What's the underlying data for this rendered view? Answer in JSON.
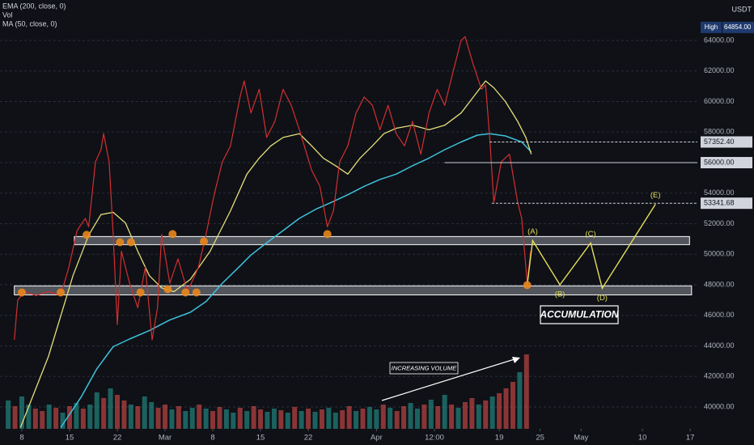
{
  "chart_data": {
    "type": "line",
    "currency": "USDT",
    "xlim": [
      -3.2,
      99.05
    ],
    "ylim": [
      38570,
      66650
    ],
    "xticks": [
      {
        "value": 0,
        "label": "8"
      },
      {
        "value": 7,
        "label": "15"
      },
      {
        "value": 14,
        "label": "22"
      },
      {
        "value": 21,
        "label": "Mar"
      },
      {
        "value": 28,
        "label": "8"
      },
      {
        "value": 35,
        "label": "15"
      },
      {
        "value": 42,
        "label": "22"
      },
      {
        "value": 52,
        "label": "Apr"
      },
      {
        "value": 60.5,
        "label": "12:00"
      },
      {
        "value": 70,
        "label": "19"
      },
      {
        "value": 76,
        "label": "25"
      },
      {
        "value": 82,
        "label": "May"
      },
      {
        "value": 91,
        "label": "10"
      },
      {
        "value": 98,
        "label": "17"
      }
    ],
    "yticks": [
      {
        "value": 40000,
        "label": "40000.00"
      },
      {
        "value": 42000,
        "label": "42000.00"
      },
      {
        "value": 44000,
        "label": "44000.00"
      },
      {
        "value": 46000,
        "label": "46000.00"
      },
      {
        "value": 48000,
        "label": "48000.00"
      },
      {
        "value": 50000,
        "label": "50000.00"
      },
      {
        "value": 52000,
        "label": "52000.00"
      },
      {
        "value": 54000,
        "label": "54000.00"
      },
      {
        "value": 56000,
        "label": "56000.00"
      },
      {
        "value": 58000,
        "label": "58000.00"
      },
      {
        "value": 60000,
        "label": "60000.00"
      },
      {
        "value": 62000,
        "label": "62000.00"
      },
      {
        "value": 64000,
        "label": "64000.00"
      }
    ],
    "grid": true,
    "price": {
      "color": "#d32f2f",
      "x": [
        -1.1,
        -0.6,
        0.4,
        2.1,
        3.9,
        5.7,
        6.9,
        8.1,
        9.3,
        9.8,
        10.8,
        11.6,
        12.0,
        12.8,
        13.4,
        14.0,
        14.6,
        15.8,
        17.0,
        18.1,
        19.1,
        19.9,
        20.5,
        21.7,
        22.9,
        24.3,
        25.9,
        27.0,
        28.2,
        29.4,
        30.6,
        32.0,
        32.6,
        33.6,
        34.8,
        35.9,
        37.1,
        38.3,
        39.5,
        40.7,
        42.5,
        43.7,
        44.8,
        45.7,
        46.6,
        47.8,
        49.0,
        50.2,
        51.4,
        52.5,
        53.7,
        54.9,
        56.1,
        57.3,
        58.5,
        59.7,
        60.9,
        62.0,
        63.2,
        64.4,
        65.0,
        66.2,
        67.4,
        68.0,
        68.6,
        69.2,
        70.3,
        71.5,
        72.7,
        73.3,
        74.1,
        74.6
      ],
      "values": [
        44400,
        47000,
        47550,
        47300,
        47550,
        47300,
        49150,
        51550,
        52350,
        51800,
        56050,
        56850,
        57900,
        56050,
        51300,
        45400,
        50200,
        48100,
        46500,
        49150,
        44400,
        46500,
        51300,
        48100,
        49700,
        47550,
        49150,
        51300,
        53900,
        56050,
        57100,
        60300,
        61350,
        59250,
        60800,
        57650,
        58700,
        60800,
        59750,
        58150,
        55500,
        54450,
        51800,
        52850,
        56050,
        57100,
        59250,
        60300,
        59750,
        58150,
        59750,
        57900,
        57100,
        58700,
        56550,
        59250,
        60800,
        59750,
        61900,
        64000,
        64250,
        62400,
        60800,
        61100,
        57650,
        53400,
        56050,
        56550,
        53400,
        52350,
        48100,
        50200
      ]
    },
    "ma": {
      "name": "MA (50, close, 0)",
      "color": "#e6df7a",
      "x": [
        -0.2,
        3.9,
        7.5,
        9.8,
        11.6,
        13.4,
        15.2,
        17.0,
        18.7,
        20.5,
        22.3,
        24.7,
        27.6,
        30.6,
        33.0,
        34.8,
        36.5,
        38.3,
        40.7,
        42.5,
        44.2,
        46.0,
        47.8,
        49.6,
        51.4,
        53.1,
        54.9,
        57.3,
        59.7,
        62.0,
        64.4,
        66.2,
        68.0,
        69.2,
        70.9,
        72.7,
        73.9,
        74.7
      ],
      "values": [
        38650,
        43310,
        48600,
        51250,
        52600,
        52750,
        52050,
        50200,
        48600,
        47800,
        47550,
        48350,
        50200,
        52850,
        55250,
        56300,
        57100,
        57650,
        57900,
        57100,
        56300,
        55800,
        55250,
        56300,
        57100,
        57900,
        58250,
        58450,
        58150,
        58450,
        59250,
        60300,
        61350,
        60900,
        60000,
        58700,
        57650,
        56550
      ]
    },
    "ema": {
      "name": "EMA (200, close, 0)",
      "color": "#3fc1dc",
      "x": [
        5.7,
        8.7,
        11.0,
        13.4,
        15.8,
        18.7,
        21.7,
        24.7,
        27.0,
        29.4,
        31.8,
        33.6,
        35.9,
        38.3,
        40.7,
        43.1,
        45.4,
        47.8,
        50.2,
        52.5,
        54.9,
        57.3,
        59.7,
        62.0,
        64.4,
        66.8,
        68.6,
        70.9,
        73.3,
        74.7
      ],
      "values": [
        38650,
        40650,
        42500,
        43950,
        44450,
        45000,
        45700,
        46200,
        46900,
        48100,
        49150,
        49950,
        50750,
        51550,
        52350,
        52950,
        53400,
        53900,
        54450,
        54900,
        55250,
        55800,
        56300,
        56850,
        57350,
        57800,
        57900,
        57750,
        57350,
        56700
      ]
    },
    "volume": {
      "name": "Vol",
      "y2lim": [
        0,
        100
      ],
      "color_up": "#26a69a",
      "color_down": "#ef5350",
      "x": [
        -2,
        -1,
        0,
        1,
        2,
        3,
        4,
        5,
        6,
        7,
        8,
        9,
        10,
        11,
        12,
        13,
        14,
        15,
        16,
        17,
        18,
        19,
        20,
        21,
        22,
        23,
        24,
        25,
        26,
        27,
        28,
        29,
        30,
        31,
        32,
        33,
        34,
        35,
        36,
        37,
        38,
        39,
        40,
        41,
        42,
        43,
        44,
        45,
        46,
        47,
        48,
        49,
        50,
        51,
        52,
        53,
        54,
        55,
        56,
        57,
        58,
        59,
        60,
        61,
        62,
        63,
        64,
        65,
        66,
        67,
        68,
        69,
        70,
        71,
        72,
        73,
        74
      ],
      "values": [
        35,
        28,
        40,
        30,
        25,
        22,
        30,
        26,
        20,
        28,
        32,
        25,
        30,
        45,
        38,
        50,
        42,
        35,
        30,
        28,
        40,
        33,
        26,
        30,
        24,
        28,
        22,
        26,
        30,
        25,
        22,
        27,
        24,
        20,
        26,
        22,
        28,
        24,
        21,
        25,
        23,
        20,
        27,
        22,
        25,
        21,
        24,
        26,
        20,
        23,
        28,
        22,
        25,
        27,
        24,
        30,
        26,
        22,
        28,
        32,
        25,
        30,
        36,
        28,
        42,
        30,
        26,
        33,
        38,
        30,
        35,
        40,
        44,
        50,
        58,
        70,
        92
      ],
      "up": [
        1,
        0,
        1,
        1,
        0,
        0,
        1,
        0,
        1,
        0,
        1,
        0,
        1,
        1,
        0,
        1,
        0,
        0,
        1,
        0,
        1,
        1,
        0,
        0,
        1,
        0,
        1,
        1,
        0,
        1,
        0,
        0,
        1,
        1,
        0,
        1,
        0,
        0,
        1,
        1,
        0,
        1,
        0,
        1,
        0,
        1,
        0,
        1,
        1,
        0,
        0,
        1,
        0,
        1,
        1,
        0,
        1,
        0,
        0,
        1,
        1,
        0,
        1,
        0,
        1,
        0,
        1,
        0,
        0,
        1,
        0,
        1,
        0,
        0,
        0,
        1,
        0
      ]
    },
    "touches": {
      "color": "#e8871e",
      "x": [
        0.0,
        5.7,
        9.5,
        14.4,
        16.0,
        17.4,
        21.4,
        22.1,
        24.0,
        25.6,
        26.7,
        44.8,
        74.1
      ],
      "values": [
        47500,
        47500,
        51270,
        50790,
        50790,
        47500,
        47710,
        51320,
        47500,
        47500,
        50840,
        51320,
        47980
      ]
    },
    "zones": [
      {
        "x": [
          7.7,
          97.9
        ],
        "y": [
          50630,
          51160
        ]
      },
      {
        "x": [
          -1.1,
          98.2
        ],
        "y": [
          47340,
          47930
        ]
      }
    ],
    "wave": {
      "color": "#e6df5a",
      "x": [
        74.1,
        74.9,
        78.9,
        83.4,
        85.1,
        92.9
      ],
      "values": [
        48000,
        50900,
        48000,
        50740,
        47770,
        53280
      ],
      "labels": [
        null,
        "(A)",
        "(B)",
        "(C)",
        "(D)",
        "(E)"
      ]
    },
    "levels": [
      {
        "value": 64854,
        "label": "64854.00",
        "tag": "High"
      },
      {
        "value": 57352.4,
        "label": "57352.40",
        "x_start": 68.6,
        "style": "dashed"
      },
      {
        "value": 56000,
        "label": "56000.00",
        "x_start": 62.0,
        "style": "solid"
      },
      {
        "value": 53341.68,
        "label": "53341.68",
        "x_start": 68.9,
        "style": "dashed"
      }
    ],
    "annotations": {
      "volume": "INCREASING VOLUME",
      "accumulation": "ACCUMULATION"
    }
  }
}
